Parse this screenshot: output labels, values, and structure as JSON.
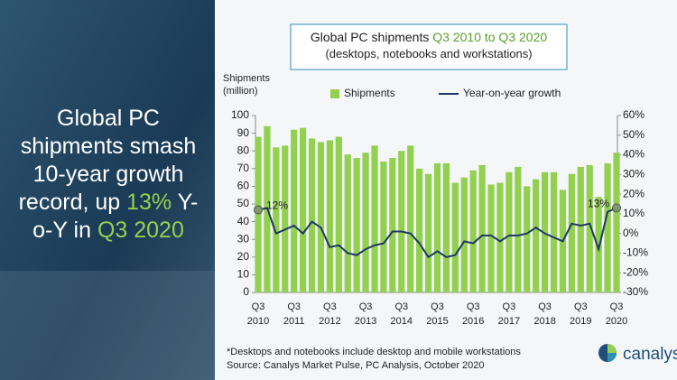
{
  "headline": [
    "Global PC shipments smash 10-year growth record, up ",
    "13%",
    " Y-o-Y in ",
    "Q3 2020"
  ],
  "chart_data": {
    "type": "bar-line",
    "title": "Global PC shipments",
    "title_highlight": "Q3 2010 to Q3 2020",
    "subtitle": "(desktops, notebooks and workstations)",
    "y_label": "Shipments (million)",
    "categories": [
      "Q3 2010",
      null,
      null,
      null,
      "Q3 2011",
      null,
      null,
      null,
      "Q3 2012",
      null,
      null,
      null,
      "Q3 2013",
      null,
      null,
      null,
      "Q3 2014",
      null,
      null,
      null,
      "Q3 2015",
      null,
      null,
      null,
      "Q3 2016",
      null,
      null,
      null,
      "Q3 2017",
      null,
      null,
      null,
      "Q3 2018",
      null,
      null,
      null,
      "Q3 2019",
      null,
      null,
      null,
      "Q3 2020"
    ],
    "series": [
      {
        "name": "Shipments",
        "type": "bar",
        "color": "#92d050",
        "values": [
          88,
          94,
          82,
          83,
          92,
          93,
          87,
          85,
          86,
          88,
          78,
          76,
          79,
          83,
          74,
          76,
          80,
          83,
          70,
          67,
          73,
          73,
          62,
          65,
          69,
          72,
          61,
          62,
          68,
          71,
          60,
          64,
          68,
          68,
          58,
          67,
          71,
          72,
          54,
          73,
          79
        ]
      },
      {
        "name": "Year-on-year growth",
        "type": "line",
        "axis": "y2",
        "color": "#1f3864",
        "values": [
          12,
          13,
          0,
          2,
          4,
          0,
          6,
          3,
          -7,
          -6,
          -10,
          -11,
          -8,
          -6,
          -5,
          1,
          1,
          0,
          -5,
          -12,
          -9,
          -12,
          -11,
          -4,
          -5,
          -1,
          -1,
          -4,
          -1,
          -1,
          0,
          3,
          0,
          -2,
          -4,
          5,
          4,
          5,
          -8,
          11,
          13
        ],
        "value_labels": [
          "12%",
          null,
          null,
          null,
          null,
          null,
          null,
          null,
          null,
          null,
          null,
          null,
          null,
          null,
          null,
          null,
          null,
          null,
          null,
          null,
          null,
          null,
          null,
          null,
          null,
          null,
          null,
          null,
          null,
          null,
          null,
          null,
          null,
          null,
          null,
          null,
          null,
          null,
          null,
          null,
          "13%"
        ]
      }
    ],
    "ylim": [
      0,
      100
    ],
    "yticks": [
      0,
      10,
      20,
      30,
      40,
      50,
      60,
      70,
      80,
      90,
      100
    ],
    "y2lim": [
      -30,
      60
    ],
    "y2ticks": [
      {
        "value": -30,
        "label": "-30%"
      },
      {
        "value": -20,
        "label": "-20%"
      },
      {
        "value": -10,
        "label": "-10%"
      },
      {
        "value": 0,
        "label": "0%"
      },
      {
        "value": 10,
        "label": "10%"
      },
      {
        "value": 20,
        "label": "20%"
      },
      {
        "value": 30,
        "label": "30%"
      },
      {
        "value": 40,
        "label": "40%"
      },
      {
        "value": 50,
        "label": "50%"
      },
      {
        "value": 60,
        "label": "60%"
      }
    ],
    "grid": false
  },
  "footnotes": [
    "*Desktops and notebooks include desktop and mobile workstations",
    "Source: Canalys Market Pulse, PC Analysis, October 2020"
  ],
  "logo": "canalys"
}
